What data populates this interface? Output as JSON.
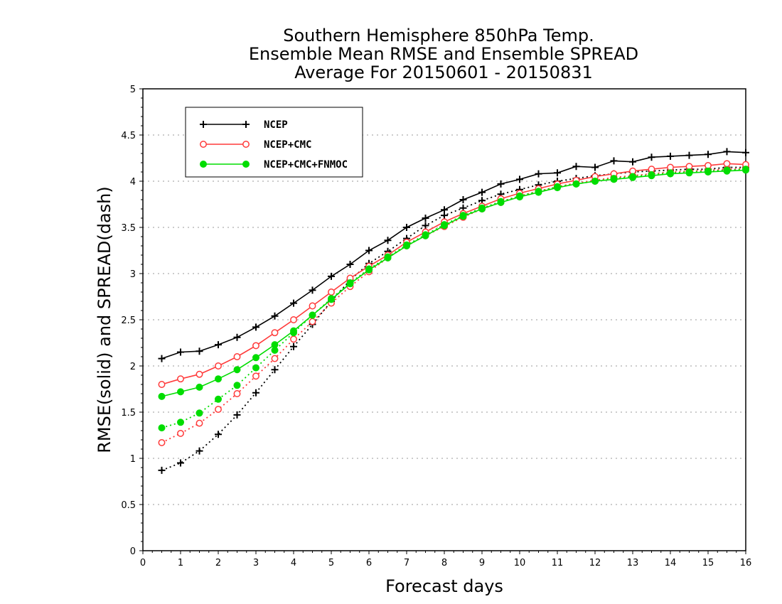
{
  "chart_data": {
    "type": "line",
    "title_lines": [
      "Southern Hemisphere 850hPa Temp.",
      "Ensemble Mean RMSE and Ensemble SPREAD",
      "Average For 20150601 - 20150831"
    ],
    "xlabel": "Forecast days",
    "ylabel": "RMSE(solid) and SPREAD(dash)",
    "xlim": [
      0,
      16
    ],
    "ylim": [
      0,
      5
    ],
    "xticks": [
      "0",
      "1",
      "2",
      "3",
      "4",
      "5",
      "6",
      "7",
      "8",
      "9",
      "10",
      "11",
      "12",
      "13",
      "14",
      "15",
      "16"
    ],
    "yticks": [
      "0",
      "0.5",
      "1",
      "1.5",
      "2",
      "2.5",
      "3",
      "3.5",
      "4",
      "4.5",
      "5"
    ],
    "grid": "horizontal dotted",
    "legend_position": "top-left",
    "x": [
      0.5,
      1,
      1.5,
      2,
      2.5,
      3,
      3.5,
      4,
      4.5,
      5,
      5.5,
      6,
      6.5,
      7,
      7.5,
      8,
      8.5,
      9,
      9.5,
      10,
      10.5,
      11,
      11.5,
      12,
      12.5,
      13,
      13.5,
      14,
      14.5,
      15,
      15.5,
      16
    ],
    "series": [
      {
        "name": "NCEP",
        "color": "#000000",
        "marker": "plus",
        "rmse": [
          2.08,
          2.15,
          2.16,
          2.23,
          2.31,
          2.42,
          2.54,
          2.68,
          2.82,
          2.97,
          3.1,
          3.25,
          3.36,
          3.5,
          3.6,
          3.69,
          3.8,
          3.88,
          3.97,
          4.02,
          4.08,
          4.09,
          4.16,
          4.15,
          4.22,
          4.21,
          4.26,
          4.27,
          4.28,
          4.29,
          4.32,
          4.31
        ],
        "spread": [
          0.87,
          0.95,
          1.08,
          1.26,
          1.47,
          1.71,
          1.96,
          2.21,
          2.45,
          2.7,
          2.93,
          3.11,
          3.24,
          3.38,
          3.52,
          3.63,
          3.71,
          3.79,
          3.86,
          3.91,
          3.96,
          4.0,
          4.03,
          4.06,
          4.08,
          4.1,
          4.11,
          4.12,
          4.13,
          4.13,
          4.15,
          4.15
        ]
      },
      {
        "name": "NCEP+CMC",
        "color": "#ff3a3a",
        "marker": "open-circle",
        "rmse": [
          1.8,
          1.86,
          1.91,
          2.0,
          2.1,
          2.22,
          2.36,
          2.5,
          2.65,
          2.8,
          2.95,
          3.08,
          3.2,
          3.34,
          3.45,
          3.56,
          3.65,
          3.73,
          3.81,
          3.87,
          3.92,
          3.97,
          4.01,
          4.05,
          4.08,
          4.11,
          4.13,
          4.15,
          4.16,
          4.17,
          4.19,
          4.18
        ],
        "spread": [
          1.17,
          1.27,
          1.38,
          1.53,
          1.7,
          1.89,
          2.08,
          2.29,
          2.48,
          2.68,
          2.86,
          3.02,
          3.17,
          3.3,
          3.41,
          3.51,
          3.61,
          3.7,
          3.77,
          3.84,
          3.89,
          3.94,
          3.98,
          4.01,
          4.04,
          4.06,
          4.08,
          4.1,
          4.11,
          4.12,
          4.13,
          4.14
        ]
      },
      {
        "name": "NCEP+CMC+FNMOC",
        "color": "#00dd00",
        "marker": "filled-circle",
        "rmse": [
          1.67,
          1.72,
          1.77,
          1.86,
          1.96,
          2.09,
          2.23,
          2.38,
          2.55,
          2.72,
          2.89,
          3.04,
          3.17,
          3.3,
          3.41,
          3.52,
          3.62,
          3.7,
          3.77,
          3.83,
          3.88,
          3.93,
          3.97,
          4.0,
          4.02,
          4.04,
          4.06,
          4.08,
          4.09,
          4.1,
          4.11,
          4.12
        ],
        "spread": [
          1.33,
          1.39,
          1.49,
          1.64,
          1.79,
          1.98,
          2.17,
          2.36,
          2.55,
          2.73,
          2.9,
          3.05,
          3.18,
          3.31,
          3.42,
          3.53,
          3.63,
          3.71,
          3.78,
          3.84,
          3.89,
          3.94,
          3.97,
          4.0,
          4.03,
          4.05,
          4.07,
          4.09,
          4.1,
          4.11,
          4.12,
          4.13
        ]
      }
    ]
  }
}
